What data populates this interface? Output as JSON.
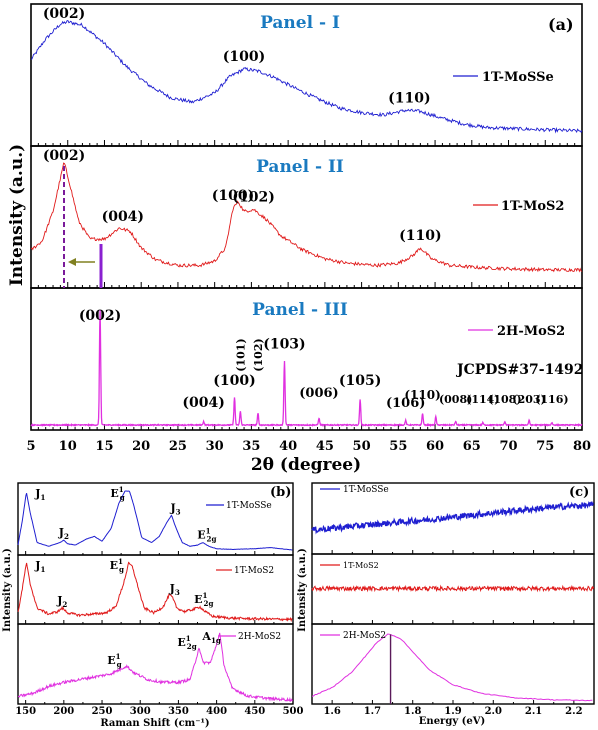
{
  "chart_data": [
    {
      "type": "line",
      "panel": "(a)",
      "xlabel": "2θ (degree)",
      "ylabel": "Intensity (a.u.)",
      "xlim": [
        5,
        80
      ],
      "xticks": [
        5,
        10,
        15,
        20,
        25,
        30,
        35,
        40,
        45,
        50,
        55,
        60,
        65,
        70,
        75,
        80
      ],
      "panels": [
        {
          "title": "Panel - I",
          "color": "#1f1fd0",
          "series": [
            {
              "name": "1T-MoSSe",
              "x": [
                5,
                7,
                9,
                10,
                12,
                15,
                18,
                21,
                24,
                27,
                30,
                32,
                34,
                36,
                38,
                41,
                44,
                47,
                50,
                53,
                56,
                58,
                61,
                64,
                67,
                71,
                75,
                80
              ],
              "y": [
                0.62,
                0.8,
                0.93,
                0.95,
                0.92,
                0.76,
                0.56,
                0.4,
                0.29,
                0.25,
                0.33,
                0.47,
                0.54,
                0.52,
                0.47,
                0.37,
                0.28,
                0.2,
                0.16,
                0.14,
                0.18,
                0.17,
                0.11,
                0.06,
                0.03,
                0.02,
                0.01,
                0.0
              ]
            }
          ],
          "peaks": [
            {
              "label": "(002)",
              "x": 9.5
            },
            {
              "label": "(100)",
              "x": 34
            },
            {
              "label": "(110)",
              "x": 56.5
            }
          ]
        },
        {
          "title": "Panel - II",
          "color": "#e01a1a",
          "series": [
            {
              "name": "1T-MoS2",
              "x": [
                5,
                6.5,
                8,
                9,
                9.5,
                10.2,
                11.5,
                13,
                15,
                17,
                18.5,
                20,
                22,
                25,
                28,
                30,
                31.5,
                32.5,
                33.2,
                34,
                35.3,
                37,
                39,
                42,
                45,
                48,
                52,
                55,
                57,
                58,
                59.5,
                62,
                66,
                70,
                75,
                80
              ],
              "y": [
                0.2,
                0.28,
                0.55,
                0.85,
                1.0,
                0.82,
                0.46,
                0.3,
                0.3,
                0.4,
                0.37,
                0.22,
                0.11,
                0.06,
                0.06,
                0.1,
                0.22,
                0.58,
                0.64,
                0.55,
                0.57,
                0.48,
                0.33,
                0.2,
                0.12,
                0.08,
                0.06,
                0.08,
                0.15,
                0.22,
                0.12,
                0.06,
                0.04,
                0.03,
                0.02,
                0.02
              ]
            }
          ],
          "peaks": [
            {
              "label": "(002)",
              "x": 9.5
            },
            {
              "label": "(004)",
              "x": 17.5
            },
            {
              "label": "(100)",
              "x": 32.5
            },
            {
              "label": "(102)",
              "x": 35.3
            },
            {
              "label": "(110)",
              "x": 58
            }
          ]
        },
        {
          "title": "Panel - III",
          "color": "#e030e0",
          "series": [
            {
              "name": "2H-MoS2",
              "x": [
                14.4,
                28.5,
                32.7,
                33.5,
                35.9,
                39.5,
                44.2,
                49.8,
                56.0,
                58.3,
                60.1,
                62.8,
                66.5,
                69.5,
                72.8,
                75.9
              ],
              "y": [
                1.0,
                0.03,
                0.24,
                0.12,
                0.1,
                0.56,
                0.06,
                0.22,
                0.04,
                0.1,
                0.07,
                0.03,
                0.02,
                0.03,
                0.04,
                0.02
              ]
            }
          ],
          "peaks": [
            {
              "label": "(002)",
              "x": 14.4
            },
            {
              "label": "(004)",
              "x": 28.5
            },
            {
              "label": "(100)",
              "x": 32.7
            },
            {
              "label": "(101)",
              "x": 33.5
            },
            {
              "label": "(102)",
              "x": 35.9
            },
            {
              "label": "(103)",
              "x": 39.5
            },
            {
              "label": "(006)",
              "x": 44.2
            },
            {
              "label": "(105)",
              "x": 49.8
            },
            {
              "label": "(106)",
              "x": 56.0
            },
            {
              "label": "(110)",
              "x": 58.3
            },
            {
              "label": "(008)",
              "x": 62.8
            },
            {
              "label": "(114)",
              "x": 66.5
            },
            {
              "label": "(108)",
              "x": 69.5
            },
            {
              "label": "(203)",
              "x": 72.8
            },
            {
              "label": "(116)",
              "x": 75.9
            }
          ]
        }
      ],
      "annotation": "JCPDS#37-1492"
    },
    {
      "type": "line",
      "panel": "(b)",
      "xlabel": "Raman Shift (cm⁻¹)",
      "ylabel": "Intensity (a.u.)",
      "xlim": [
        140,
        500
      ],
      "xticks": [
        150,
        200,
        250,
        300,
        350,
        400,
        450,
        500
      ],
      "panels": [
        {
          "color": "#1f1fd0",
          "series": [
            {
              "name": "1T-MoSSe",
              "x": [
                140,
                146,
                151,
                156,
                165,
                180,
                195,
                200,
                205,
                215,
                230,
                240,
                250,
                262,
                272,
                280,
                286,
                292,
                302,
                315,
                325,
                335,
                341,
                347,
                355,
                365,
                375,
                382,
                390,
                400,
                420,
                450,
                470,
                500
              ],
              "y": [
                0.08,
                0.5,
                0.93,
                0.6,
                0.12,
                0.06,
                0.12,
                0.16,
                0.1,
                0.08,
                0.18,
                0.22,
                0.14,
                0.35,
                0.75,
                0.95,
                0.95,
                0.7,
                0.2,
                0.12,
                0.22,
                0.45,
                0.56,
                0.35,
                0.12,
                0.06,
                0.08,
                0.12,
                0.06,
                0.02,
                0.01,
                0.02,
                0.04,
                0.0
              ]
            }
          ],
          "peaks": [
            {
              "label": "J1",
              "x": 151
            },
            {
              "label": "J2",
              "x": 200
            },
            {
              "label": "E1g",
              "x": 286
            },
            {
              "label": "J3",
              "x": 341
            },
            {
              "label": "E12g",
              "x": 382
            }
          ]
        },
        {
          "color": "#e01a1a",
          "series": [
            {
              "name": "1T-MoS2",
              "x": [
                140,
                146,
                151,
                156,
                165,
                180,
                192,
                198,
                205,
                220,
                240,
                255,
                268,
                278,
                285,
                290,
                296,
                305,
                318,
                330,
                338,
                342,
                348,
                358,
                370,
                378,
                385,
                395,
                420,
                450,
                500
              ],
              "y": [
                0.12,
                0.55,
                0.95,
                0.6,
                0.2,
                0.1,
                0.14,
                0.2,
                0.12,
                0.08,
                0.1,
                0.12,
                0.22,
                0.6,
                0.95,
                0.88,
                0.6,
                0.2,
                0.12,
                0.22,
                0.42,
                0.38,
                0.2,
                0.14,
                0.18,
                0.22,
                0.14,
                0.06,
                0.03,
                0.02,
                0.01
              ]
            }
          ],
          "peaks": [
            {
              "label": "J1",
              "x": 151
            },
            {
              "label": "J2",
              "x": 198
            },
            {
              "label": "E1g",
              "x": 285
            },
            {
              "label": "J3",
              "x": 340
            },
            {
              "label": "E12g",
              "x": 378
            }
          ]
        },
        {
          "color": "#e030e0",
          "series": [
            {
              "name": "2H-MoS2",
              "x": [
                140,
                160,
                180,
                200,
                220,
                240,
                260,
                272,
                282,
                292,
                310,
                330,
                350,
                365,
                372,
                377,
                382,
                392,
                398,
                404,
                410,
                420,
                440,
                470,
                500
              ],
              "y": [
                0.05,
                0.1,
                0.2,
                0.26,
                0.3,
                0.34,
                0.38,
                0.44,
                0.5,
                0.4,
                0.3,
                0.26,
                0.26,
                0.3,
                0.55,
                0.78,
                0.55,
                0.55,
                0.75,
                0.98,
                0.5,
                0.18,
                0.06,
                0.02,
                0.0
              ]
            }
          ],
          "peaks": [
            {
              "label": "E1g",
              "x": 282
            },
            {
              "label": "E12g",
              "x": 377
            },
            {
              "label": "A1g",
              "x": 404
            }
          ]
        }
      ]
    },
    {
      "type": "line",
      "panel": "(c)",
      "xlabel": "Energy (eV)",
      "ylabel": "Intensity (a.u.)",
      "xlim": [
        1.55,
        2.25
      ],
      "xticks": [
        1.6,
        1.7,
        1.8,
        1.9,
        2.0,
        2.1,
        2.2
      ],
      "panels": [
        {
          "color": "#1f1fd0",
          "series": [
            {
              "name": "1T-MoSSe",
              "x": [
                1.55,
                1.65,
                1.75,
                1.85,
                1.95,
                2.05,
                2.15,
                2.25
              ],
              "y": [
                0.3,
                0.36,
                0.42,
                0.48,
                0.55,
                0.62,
                0.68,
                0.72
              ]
            }
          ]
        },
        {
          "color": "#e01a1a",
          "series": [
            {
              "name": "1T-MoS2",
              "x": [
                1.55,
                2.25
              ],
              "y": [
                0.45,
                0.45
              ]
            }
          ]
        },
        {
          "color": "#e030e0",
          "series": [
            {
              "name": "2H-MoS2",
              "x": [
                1.55,
                1.6,
                1.65,
                1.68,
                1.71,
                1.74,
                1.77,
                1.8,
                1.84,
                1.9,
                1.97,
                2.05,
                2.15,
                2.25
              ],
              "y": [
                0.08,
                0.2,
                0.42,
                0.62,
                0.82,
                0.95,
                0.88,
                0.7,
                0.45,
                0.24,
                0.12,
                0.06,
                0.03,
                0.02
              ]
            }
          ],
          "marker_x": 1.745
        }
      ]
    }
  ]
}
